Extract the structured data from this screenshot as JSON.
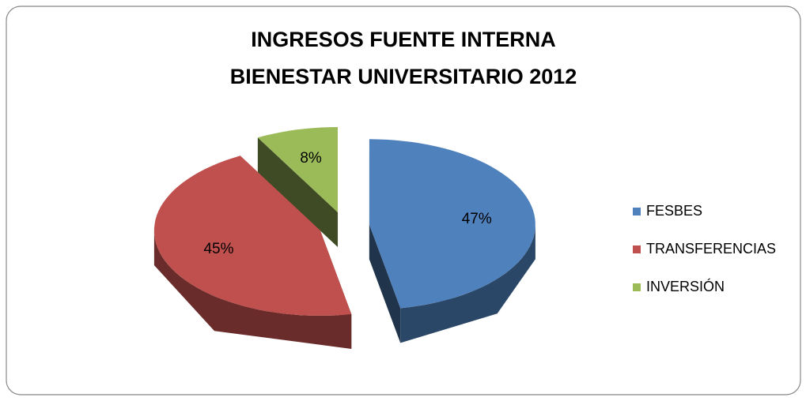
{
  "chart_data": {
    "type": "pie",
    "title": [
      "INGRESOS FUENTE INTERNA",
      "BIENESTAR UNIVERSITARIO 2012"
    ],
    "categories": [
      "FESBES",
      "TRANSFERENCIAS",
      "INVERSIÓN"
    ],
    "values": [
      47,
      45,
      8
    ],
    "value_labels": [
      "47%",
      "45%",
      "8%"
    ],
    "colors": [
      "#4f81bd",
      "#c0504d",
      "#9bbb59"
    ],
    "legend": "right"
  }
}
